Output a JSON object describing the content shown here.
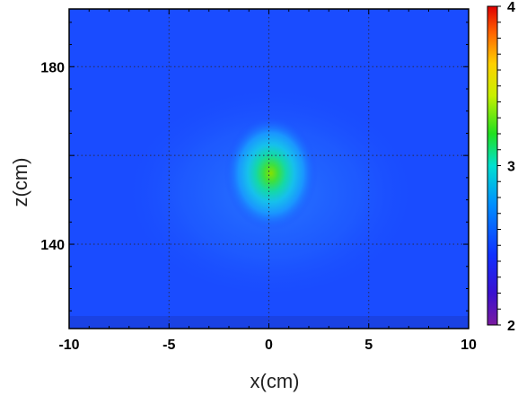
{
  "chart_data": {
    "type": "heatmap",
    "xlabel": "x(cm)",
    "ylabel": "z(cm)",
    "xlim": [
      -10,
      10
    ],
    "ylim": [
      121,
      193
    ],
    "x_ticks": [
      -10,
      -5,
      0,
      5,
      10
    ],
    "x_tick_labels": [
      "-10",
      "-5",
      "0",
      "5",
      "10"
    ],
    "y_ticks": [
      140,
      180
    ],
    "y_tick_labels": [
      "140",
      "180"
    ],
    "grid": true,
    "colorbar": {
      "range": [
        2,
        4
      ],
      "tick_values": [
        2,
        3,
        4
      ],
      "tick_labels": [
        "2",
        "3",
        "4"
      ],
      "colormap": "jet"
    },
    "background_value": 2.55,
    "hotspot": {
      "center_x": 0.1,
      "center_z": 156,
      "peak_value": 3.15,
      "sigma_x_cm": 0.9,
      "sigma_z_cm": 10
    },
    "colors": {
      "background": "#1a4cff",
      "peak": "#8be000",
      "grid": "#2a2a4a"
    }
  }
}
